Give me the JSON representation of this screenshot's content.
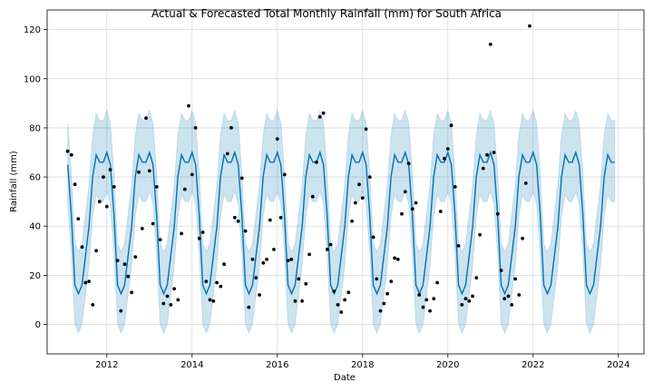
{
  "chart_data": {
    "type": "line",
    "title": "Actual & Forecasted Total Monthly Rainfall (mm) for South Africa",
    "xlabel": "Date",
    "ylabel": "Rainfall (mm)",
    "xlim": [
      2010.6,
      2024.6
    ],
    "ylim": [
      -12,
      128
    ],
    "x_ticks": [
      2012,
      2014,
      2016,
      2018,
      2020,
      2022,
      2024
    ],
    "y_ticks": [
      0,
      20,
      40,
      60,
      80,
      100,
      120
    ],
    "grid": true,
    "colors": {
      "forecast_line": "#0072B2",
      "interval_fill": "#0072B2",
      "actual_points": "#000000",
      "grid": "#d9d9d9"
    },
    "forecast_cycle": {
      "months": [
        1,
        2,
        3,
        4,
        5,
        6,
        7,
        8,
        9,
        10,
        11,
        12
      ],
      "yhat": [
        70,
        65,
        45,
        16,
        12.5,
        16,
        28,
        40,
        60,
        69,
        66,
        66
      ],
      "band_lower_offset": 16,
      "band_upper_offset": 17,
      "start": "2011-02",
      "end": "2023-12"
    },
    "actuals": [
      [
        2011.08,
        70.5
      ],
      [
        2011.17,
        69
      ],
      [
        2011.25,
        57
      ],
      [
        2011.33,
        43
      ],
      [
        2011.42,
        31.5
      ],
      [
        2011.5,
        17
      ],
      [
        2011.58,
        17.5
      ],
      [
        2011.67,
        8
      ],
      [
        2011.75,
        30
      ],
      [
        2011.83,
        50
      ],
      [
        2011.92,
        60
      ],
      [
        2012.0,
        48
      ],
      [
        2012.08,
        63
      ],
      [
        2012.17,
        56
      ],
      [
        2012.25,
        26
      ],
      [
        2012.33,
        5.5
      ],
      [
        2012.42,
        24.5
      ],
      [
        2012.5,
        19.5
      ],
      [
        2012.58,
        13
      ],
      [
        2012.67,
        27.5
      ],
      [
        2012.75,
        62
      ],
      [
        2012.83,
        39
      ],
      [
        2012.92,
        84
      ],
      [
        2013.0,
        62.5
      ],
      [
        2013.08,
        41
      ],
      [
        2013.17,
        56
      ],
      [
        2013.25,
        34.5
      ],
      [
        2013.33,
        8.5
      ],
      [
        2013.42,
        11.5
      ],
      [
        2013.5,
        8
      ],
      [
        2013.58,
        14.5
      ],
      [
        2013.67,
        10
      ],
      [
        2013.75,
        37
      ],
      [
        2013.83,
        55
      ],
      [
        2013.92,
        89
      ],
      [
        2014.0,
        61
      ],
      [
        2014.08,
        80
      ],
      [
        2014.17,
        35
      ],
      [
        2014.25,
        37.5
      ],
      [
        2014.33,
        17.5
      ],
      [
        2014.42,
        10
      ],
      [
        2014.5,
        9.5
      ],
      [
        2014.58,
        17
      ],
      [
        2014.67,
        15.5
      ],
      [
        2014.75,
        24.5
      ],
      [
        2014.83,
        69.5
      ],
      [
        2014.92,
        80
      ],
      [
        2015.0,
        43.5
      ],
      [
        2015.08,
        42
      ],
      [
        2015.17,
        59.5
      ],
      [
        2015.25,
        38
      ],
      [
        2015.33,
        7
      ],
      [
        2015.42,
        26.5
      ],
      [
        2015.5,
        19
      ],
      [
        2015.58,
        12
      ],
      [
        2015.67,
        25
      ],
      [
        2015.75,
        26.5
      ],
      [
        2015.83,
        42.5
      ],
      [
        2015.92,
        30.5
      ],
      [
        2016.0,
        75.5
      ],
      [
        2016.08,
        43.5
      ],
      [
        2016.17,
        61
      ],
      [
        2016.25,
        26
      ],
      [
        2016.33,
        26.5
      ],
      [
        2016.42,
        9.5
      ],
      [
        2016.5,
        18.5
      ],
      [
        2016.58,
        9.5
      ],
      [
        2016.67,
        16.5
      ],
      [
        2016.75,
        28.5
      ],
      [
        2016.83,
        52
      ],
      [
        2016.92,
        66
      ],
      [
        2017.0,
        84.5
      ],
      [
        2017.08,
        86
      ],
      [
        2017.17,
        30.5
      ],
      [
        2017.25,
        32.5
      ],
      [
        2017.33,
        13.5
      ],
      [
        2017.42,
        8
      ],
      [
        2017.5,
        5
      ],
      [
        2017.58,
        10
      ],
      [
        2017.67,
        13
      ],
      [
        2017.75,
        42
      ],
      [
        2017.83,
        49.5
      ],
      [
        2017.92,
        57
      ],
      [
        2018.0,
        51.5
      ],
      [
        2018.08,
        79.5
      ],
      [
        2018.17,
        60
      ],
      [
        2018.25,
        35.5
      ],
      [
        2018.33,
        18.5
      ],
      [
        2018.42,
        5.5
      ],
      [
        2018.5,
        8.5
      ],
      [
        2018.58,
        12.5
      ],
      [
        2018.67,
        17.5
      ],
      [
        2018.75,
        27
      ],
      [
        2018.83,
        26.5
      ],
      [
        2018.92,
        45
      ],
      [
        2019.0,
        54
      ],
      [
        2019.08,
        65.5
      ],
      [
        2019.17,
        47
      ],
      [
        2019.25,
        49.5
      ],
      [
        2019.33,
        12
      ],
      [
        2019.42,
        7
      ],
      [
        2019.5,
        10
      ],
      [
        2019.58,
        5.5
      ],
      [
        2019.67,
        10.5
      ],
      [
        2019.75,
        17
      ],
      [
        2019.83,
        46
      ],
      [
        2019.92,
        67.5
      ],
      [
        2020.0,
        71.5
      ],
      [
        2020.08,
        81
      ],
      [
        2020.17,
        56
      ],
      [
        2020.25,
        32
      ],
      [
        2020.33,
        8
      ],
      [
        2020.42,
        10.5
      ],
      [
        2020.5,
        9.5
      ],
      [
        2020.58,
        11.5
      ],
      [
        2020.67,
        19
      ],
      [
        2020.75,
        36.5
      ],
      [
        2020.83,
        63.5
      ],
      [
        2020.92,
        69
      ],
      [
        2021.0,
        114
      ],
      [
        2021.08,
        70
      ],
      [
        2021.17,
        45
      ],
      [
        2021.25,
        22
      ],
      [
        2021.33,
        10.5
      ],
      [
        2021.42,
        11.5
      ],
      [
        2021.5,
        8
      ],
      [
        2021.58,
        18.5
      ],
      [
        2021.67,
        12
      ],
      [
        2021.75,
        35
      ],
      [
        2021.83,
        57.5
      ],
      [
        2021.92,
        121.5
      ]
    ]
  }
}
